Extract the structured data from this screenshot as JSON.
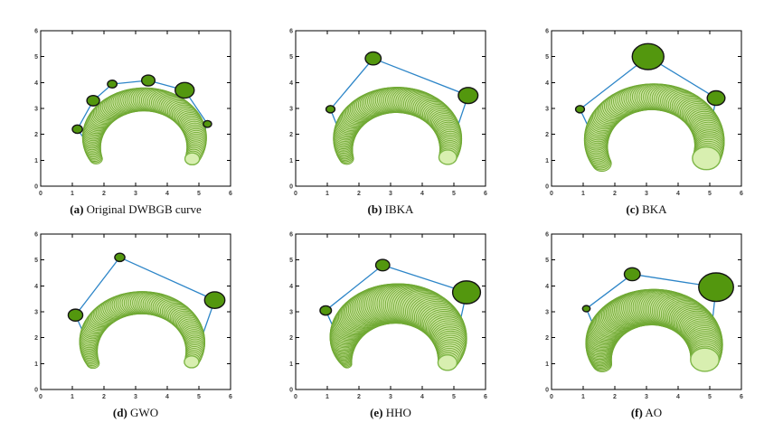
{
  "figure": {
    "background": "#ffffff"
  },
  "style": {
    "band_fill": "#cfe7a3",
    "band_stroke": "#70a934",
    "cap_fill": "#d8efb0",
    "cap_stroke": "#7fb748",
    "disk_fill": "#53970e",
    "disk_stroke": "#141414",
    "polygon_color": "#2e86c8",
    "spine_color": "#000000",
    "tick_label_color": "#3d3d3d"
  },
  "axis": {
    "xlim": [
      0,
      6
    ],
    "ylim": [
      0,
      6
    ],
    "tick_labels": [
      "0",
      "1",
      "2",
      "3",
      "4",
      "5",
      "6"
    ],
    "ticks_inward": true
  },
  "chart_data": [
    {
      "type": "scatter",
      "label": "(a)",
      "title": "Original DWBGB curve",
      "xlim": [
        0,
        6
      ],
      "ylim": [
        0,
        6
      ],
      "control_disks": [
        {
          "x": 1.16,
          "y": 2.2,
          "r": 0.16
        },
        {
          "x": 1.66,
          "y": 3.3,
          "r": 0.2
        },
        {
          "x": 2.26,
          "y": 3.94,
          "r": 0.15
        },
        {
          "x": 3.4,
          "y": 4.08,
          "r": 0.21
        },
        {
          "x": 4.55,
          "y": 3.7,
          "r": 0.3
        },
        {
          "x": 5.27,
          "y": 2.4,
          "r": 0.13
        }
      ],
      "control_polygon": [
        [
          1.78,
          1.15
        ],
        [
          1.16,
          2.2
        ],
        [
          1.66,
          3.3
        ],
        [
          2.26,
          3.94
        ],
        [
          3.4,
          4.08
        ],
        [
          4.55,
          3.7
        ],
        [
          5.27,
          2.4
        ],
        [
          4.84,
          1.15
        ]
      ],
      "band": {
        "cx": 3.27,
        "cy": 1.7,
        "R": 1.65,
        "start_deg": 203,
        "end_deg": -23,
        "r_start": 0.2,
        "r_mid": 0.68,
        "r_end": 0.23,
        "n_circles": 100
      }
    },
    {
      "type": "scatter",
      "label": "(b)",
      "title": "IBKA",
      "xlim": [
        0,
        6
      ],
      "ylim": [
        0,
        6
      ],
      "control_disks": [
        {
          "x": 1.1,
          "y": 2.97,
          "r": 0.14
        },
        {
          "x": 2.45,
          "y": 4.93,
          "r": 0.25
        },
        {
          "x": 5.45,
          "y": 3.5,
          "r": 0.31
        }
      ],
      "control_polygon": [
        [
          1.4,
          2.05
        ],
        [
          1.1,
          2.97
        ],
        [
          2.45,
          4.93
        ],
        [
          5.45,
          3.5
        ],
        [
          5.02,
          1.95
        ]
      ],
      "band": {
        "cx": 3.2,
        "cy": 1.64,
        "R": 1.69,
        "start_deg": 200,
        "end_deg": -18,
        "r_start": 0.22,
        "r_mid": 0.73,
        "r_end": 0.28,
        "n_circles": 100
      }
    },
    {
      "type": "scatter",
      "label": "(c)",
      "title": "BKA",
      "xlim": [
        0,
        6
      ],
      "ylim": [
        0,
        6
      ],
      "control_disks": [
        {
          "x": 0.9,
          "y": 2.97,
          "r": 0.14
        },
        {
          "x": 3.05,
          "y": 5.0,
          "r": 0.5
        },
        {
          "x": 5.2,
          "y": 3.4,
          "r": 0.28
        }
      ],
      "control_polygon": [
        [
          1.2,
          2.2
        ],
        [
          0.9,
          2.97
        ],
        [
          3.05,
          5.0
        ],
        [
          5.2,
          3.4
        ],
        [
          5.02,
          2.25
        ]
      ],
      "band": {
        "cx": 3.2,
        "cy": 1.66,
        "R": 1.79,
        "start_deg": 206,
        "end_deg": -19,
        "r_start": 0.3,
        "r_mid": 0.63,
        "r_end": 0.44,
        "n_circles": 100
      }
    },
    {
      "type": "scatter",
      "label": "(d)",
      "title": "GWO",
      "xlim": [
        0,
        6
      ],
      "ylim": [
        0,
        6
      ],
      "control_disks": [
        {
          "x": 1.1,
          "y": 2.87,
          "r": 0.23
        },
        {
          "x": 2.5,
          "y": 5.1,
          "r": 0.16
        },
        {
          "x": 5.5,
          "y": 3.45,
          "r": 0.32
        }
      ],
      "control_polygon": [
        [
          1.42,
          2.0
        ],
        [
          1.1,
          2.87
        ],
        [
          2.5,
          5.1
        ],
        [
          5.5,
          3.45
        ],
        [
          5.1,
          2.05
        ]
      ],
      "band": {
        "cx": 3.2,
        "cy": 1.67,
        "R": 1.68,
        "start_deg": 203,
        "end_deg": -21,
        "r_start": 0.2,
        "r_mid": 0.65,
        "r_end": 0.23,
        "n_circles": 100
      }
    },
    {
      "type": "scatter",
      "label": "(e)",
      "title": "HHO",
      "xlim": [
        0,
        6
      ],
      "ylim": [
        0,
        6
      ],
      "control_disks": [
        {
          "x": 0.95,
          "y": 3.05,
          "r": 0.18
        },
        {
          "x": 2.75,
          "y": 4.8,
          "r": 0.22
        },
        {
          "x": 5.4,
          "y": 3.75,
          "r": 0.44
        }
      ],
      "control_polygon": [
        [
          1.32,
          2.05
        ],
        [
          0.95,
          3.05
        ],
        [
          2.75,
          4.8
        ],
        [
          5.4,
          3.75
        ],
        [
          5.12,
          2.2
        ]
      ],
      "band": {
        "cx": 3.2,
        "cy": 1.62,
        "R": 1.7,
        "start_deg": 202,
        "end_deg": -20,
        "r_start": 0.15,
        "r_mid": 1.3,
        "r_end": 0.3,
        "n_circles": 100
      }
    },
    {
      "type": "scatter",
      "label": "(f)",
      "title": "AO",
      "xlim": [
        0,
        6
      ],
      "ylim": [
        0,
        6
      ],
      "control_disks": [
        {
          "x": 1.1,
          "y": 3.12,
          "r": 0.12
        },
        {
          "x": 2.55,
          "y": 4.45,
          "r": 0.25
        },
        {
          "x": 5.2,
          "y": 3.95,
          "r": 0.55
        }
      ],
      "control_polygon": [
        [
          1.35,
          2.4
        ],
        [
          1.1,
          3.12
        ],
        [
          2.55,
          4.45
        ],
        [
          5.2,
          3.95
        ],
        [
          5.08,
          2.6
        ]
      ],
      "band": {
        "cx": 3.2,
        "cy": 1.5,
        "R": 1.68,
        "start_deg": 198,
        "end_deg": -12,
        "r_start": 0.3,
        "r_mid": 1.0,
        "r_end": 0.45,
        "n_circles": 100
      }
    }
  ]
}
